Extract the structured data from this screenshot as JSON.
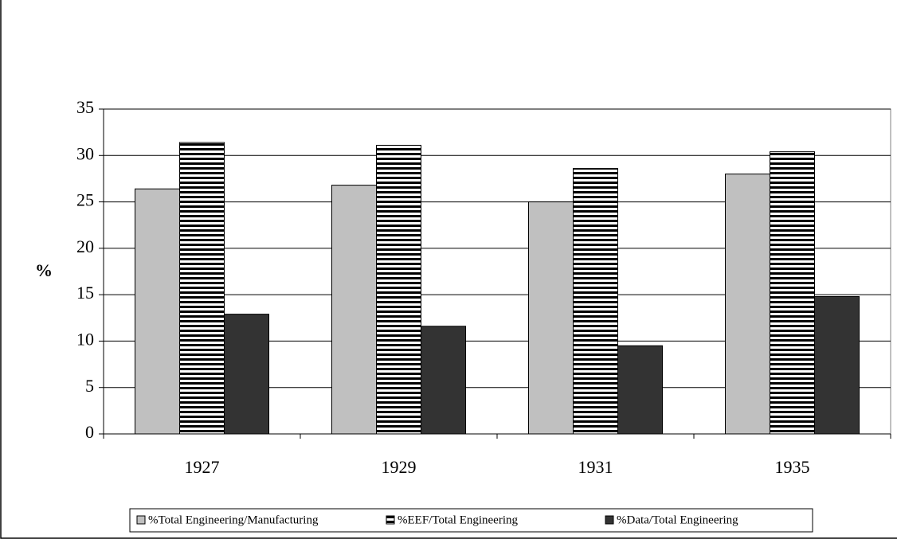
{
  "chart_data": {
    "type": "bar",
    "y_label": "%",
    "categories": [
      "1927",
      "1929",
      "1931",
      "1935"
    ],
    "series": [
      {
        "name": "%Total Engineering/Manufacturing",
        "color": "#c0c0c0",
        "values": [
          26.4,
          26.8,
          25.0,
          28.0
        ]
      },
      {
        "name": "%EEF/Total Engineering",
        "color": "#000000",
        "hatch": "horizontal",
        "values": [
          31.4,
          31.1,
          28.6,
          30.4
        ]
      },
      {
        "name": "%Data/Total Engineering",
        "color": "#333333",
        "values": [
          12.9,
          11.6,
          9.5,
          14.8
        ]
      }
    ],
    "ylim": [
      0,
      35
    ],
    "yticks": [
      0,
      5,
      10,
      15,
      20,
      25,
      30,
      35
    ],
    "grid": true,
    "legend": "bottom"
  }
}
